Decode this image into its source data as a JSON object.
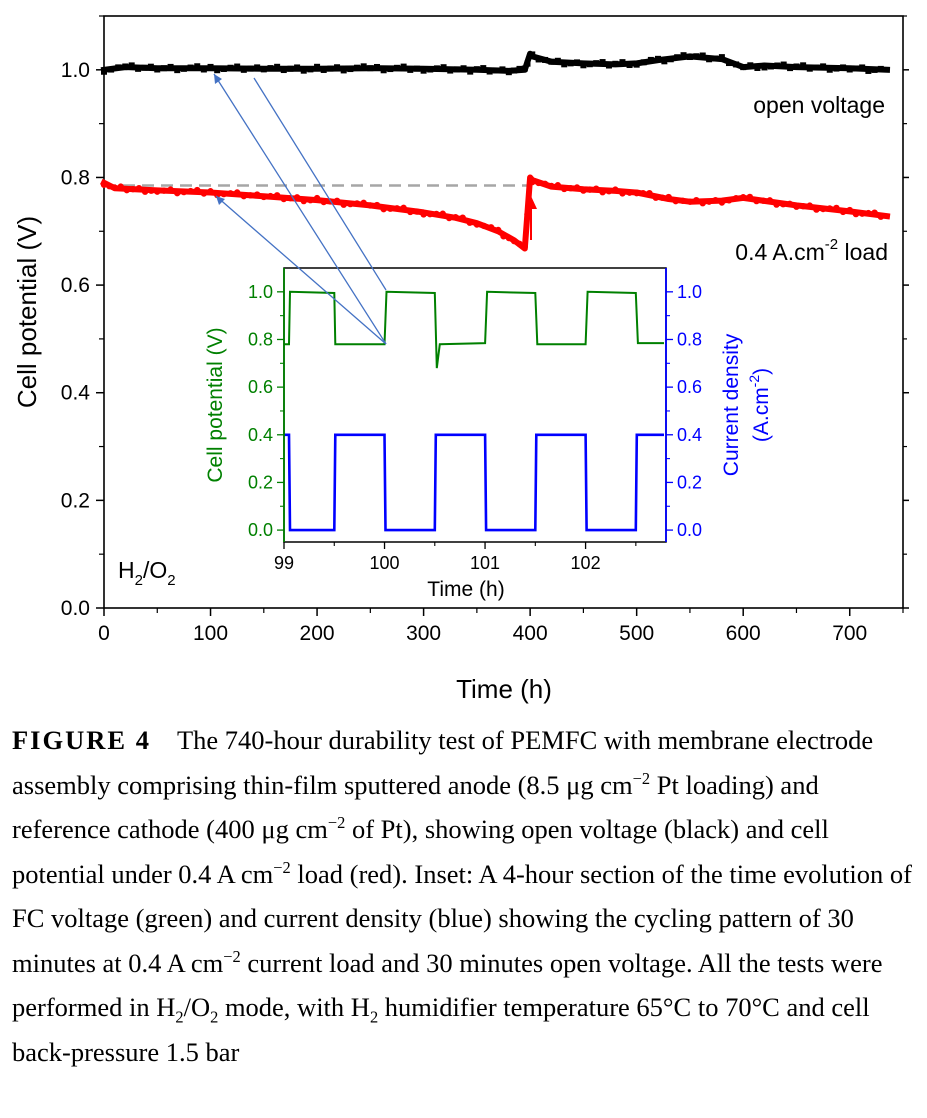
{
  "chart_data": [
    {
      "type": "line",
      "xlabel": "Time (h)",
      "ylabel": "Cell potential (V)",
      "xlim": [
        0,
        750
      ],
      "ylim": [
        0.0,
        1.1
      ],
      "xticks": [
        "0",
        "100",
        "200",
        "300",
        "400",
        "500",
        "600",
        "700"
      ],
      "yticks": [
        "0.0",
        "0.2",
        "0.4",
        "0.6",
        "0.8",
        "1.0"
      ],
      "annotations": {
        "open_voltage": "open voltage",
        "load_text": "0.4 A.cm",
        "load_exp": "-2",
        "load_suffix": " load",
        "gas_h": "H",
        "gas_2a": "2",
        "gas_mid": "/O",
        "gas_2b": "2"
      },
      "reference_line": 0.785,
      "series": [
        {
          "color": "#000000",
          "x": [
            0,
            20,
            50,
            100,
            150,
            200,
            250,
            300,
            350,
            380,
            395,
            400,
            402,
            420,
            450,
            480,
            500,
            520,
            550,
            580,
            600,
            620,
            650,
            700,
            735
          ],
          "y": [
            1.0,
            1.005,
            1.003,
            1.003,
            1.002,
            1.002,
            1.003,
            1.002,
            1.0,
            0.998,
            1.0,
            1.03,
            1.025,
            1.015,
            1.012,
            1.01,
            1.012,
            1.018,
            1.025,
            1.02,
            1.005,
            1.008,
            1.005,
            1.003,
            1.0
          ]
        },
        {
          "color": "#ff0000",
          "x": [
            0,
            10,
            50,
            100,
            150,
            200,
            250,
            300,
            330,
            350,
            370,
            385,
            395,
            400,
            402,
            420,
            450,
            480,
            500,
            530,
            550,
            580,
            600,
            650,
            700,
            735
          ],
          "y": [
            0.79,
            0.78,
            0.776,
            0.772,
            0.765,
            0.758,
            0.748,
            0.735,
            0.725,
            0.715,
            0.7,
            0.683,
            0.668,
            0.8,
            0.795,
            0.783,
            0.778,
            0.775,
            0.772,
            0.76,
            0.755,
            0.757,
            0.762,
            0.748,
            0.737,
            0.728
          ]
        }
      ]
    },
    {
      "type": "line",
      "xlabel": "Time (h)",
      "ylabel": "Cell potential (V)",
      "y2label_1": "Current density",
      "y2label_2_pre": "(A.cm",
      "y2label_2_exp": "-2",
      "y2label_2_post": ")",
      "xlim": [
        99,
        102.8
      ],
      "ylim": [
        -0.05,
        1.1
      ],
      "xticks": [
        "99",
        "100",
        "101",
        "102"
      ],
      "yticks": [
        "0.0",
        "0.2",
        "0.4",
        "0.6",
        "0.8",
        "1.0"
      ],
      "series": [
        {
          "color": "#008000",
          "x": [
            99.0,
            99.05,
            99.06,
            99.5,
            99.51,
            100.0,
            100.02,
            100.5,
            100.52,
            100.55,
            101.0,
            101.02,
            101.5,
            101.52,
            102.0,
            102.02,
            102.5,
            102.52,
            102.78
          ],
          "y": [
            0.78,
            0.78,
            1.0,
            0.995,
            0.78,
            0.78,
            1.0,
            0.995,
            0.68,
            0.78,
            0.785,
            1.0,
            0.995,
            0.78,
            0.78,
            1.0,
            0.995,
            0.785,
            0.785
          ]
        },
        {
          "color": "#0000ff",
          "x": [
            99.0,
            99.05,
            99.06,
            99.5,
            99.51,
            100.0,
            100.01,
            100.5,
            100.51,
            101.0,
            101.01,
            101.5,
            101.51,
            102.0,
            102.01,
            102.5,
            102.51,
            102.78
          ],
          "y": [
            0.4,
            0.4,
            0.0,
            0.0,
            0.4,
            0.4,
            0.0,
            0.0,
            0.4,
            0.4,
            0.0,
            0.0,
            0.4,
            0.4,
            0.0,
            0.0,
            0.4,
            0.4
          ]
        }
      ]
    }
  ],
  "caption": {
    "label": "FIGURE 4",
    "t1": "The 740-hour durability test of PEMFC with membrane electrode assembly comprising thin-film sputtered anode (8.5 μg cm",
    "t1_exp": "−2",
    "t2": " Pt loading) and reference cathode (400 μg cm",
    "t2_exp": "−2",
    "t3": " of Pt), showing open voltage (black) and cell potential under 0.4 A cm",
    "t3_exp": "−2",
    "t4": " load (red). Inset: A 4-hour section of the time evolution of FC voltage (green) and current density (blue) showing the cycling pattern of 30 minutes at 0.4 A cm",
    "t4_exp": "−2",
    "t5": " current load and 30 minutes open voltage. All the tests were performed in H",
    "t5_sub1": "2",
    "t5_mid": "/O",
    "t5_sub2": "2",
    "t6": " mode, with H",
    "t6_sub": "2",
    "t7": " humidifier temperature 65°C to 70°C and cell back-pressure 1.5 bar"
  }
}
